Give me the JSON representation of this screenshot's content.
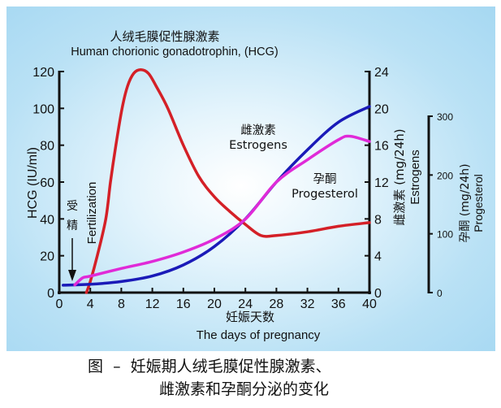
{
  "chart_data": {
    "type": "line",
    "title_cn": "人绒毛膜促性腺激素",
    "title": "Human chorionic gonadotrophin, (HCG)",
    "xlabel_cn": "妊娠天数",
    "xlabel": "The days of pregnancy",
    "xlim": [
      0,
      40
    ],
    "xticks": [
      "0",
      "4",
      "8",
      "12",
      "16",
      "20",
      "24",
      "28",
      "32",
      "36",
      "40"
    ],
    "axes": {
      "left": {
        "label": "HCG (IU/ml)",
        "ylim": [
          0,
          120
        ],
        "ticks": [
          "0",
          "20",
          "40",
          "60",
          "80",
          "100",
          "120"
        ]
      },
      "right1": {
        "label_cn": "雌激素 (mg/24h)",
        "label": "Estrogens",
        "ylim": [
          0,
          24
        ],
        "ticks": [
          "0",
          "4",
          "8",
          "12",
          "16",
          "20",
          "24"
        ]
      },
      "right2": {
        "label_cn": "孕酮 (mg/24h)",
        "label": "Progesterol",
        "ylim": [
          0,
          300
        ],
        "ticks": [
          "0",
          "100",
          "200",
          "300"
        ]
      }
    },
    "series": [
      {
        "name": "HCG",
        "axis": "left",
        "color": "#d42027",
        "x": [
          3.5,
          4,
          4.9,
          6,
          6.6,
          7.3,
          8.1,
          8.8,
          9.6,
          10.5,
          11.5,
          12.5,
          14,
          16,
          18,
          20,
          22,
          24,
          26,
          28,
          32,
          36,
          40
        ],
        "y": [
          0,
          6,
          20,
          40,
          60,
          80,
          100,
          112,
          119,
          121,
          119,
          112,
          100,
          80,
          63,
          52,
          44,
          37,
          31,
          31,
          33,
          36,
          38
        ]
      },
      {
        "name": "雌激素 Estrogens",
        "axis": "right1",
        "color": "#1a1ab8",
        "x": [
          0.5,
          4,
          8,
          12,
          16,
          20,
          24,
          28,
          32,
          36,
          40
        ],
        "y": [
          0.8,
          0.9,
          1.2,
          1.8,
          3.0,
          5.0,
          8.0,
          12.0,
          15.5,
          18.5,
          20.2
        ]
      },
      {
        "name": "孕酮 Progesterol",
        "axis": "right2",
        "color": "#e02ad8",
        "x": [
          2,
          3,
          4,
          8,
          12,
          16,
          20,
          24,
          28,
          32,
          36,
          37.5,
          40
        ],
        "y": [
          13,
          25,
          28,
          41,
          53,
          69,
          91,
          125,
          188,
          226,
          260,
          266,
          257
        ]
      }
    ],
    "annotations": {
      "fertilization_cn": "受精",
      "fertilization": "Fertilization",
      "fertilization_day": 1.6
    },
    "grid": false
  },
  "caption": {
    "line1": "图  –  妊娠期人绒毛膜促性腺激素、",
    "line2": "雌激素和孕酮分泌的变化"
  }
}
